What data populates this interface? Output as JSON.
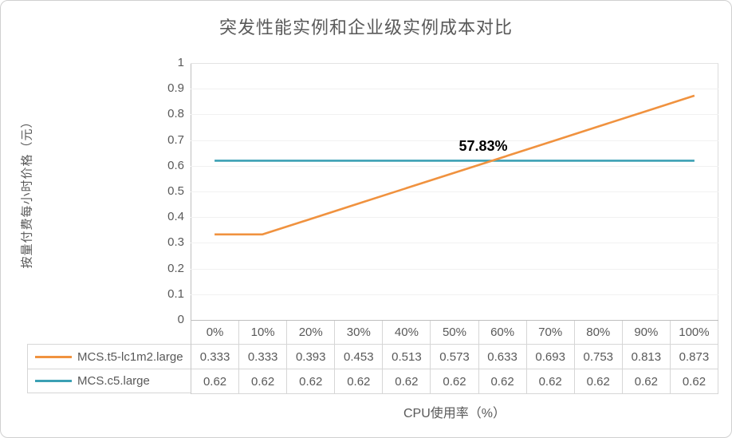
{
  "title": "突发性能实例和企业级实例成本对比",
  "y_axis_title": "按量付费每小时价格（元）",
  "x_axis_title": "CPU使用率（%）",
  "annotation": {
    "text": "57.83%"
  },
  "colors": {
    "series_burst": "#F0923F",
    "series_enterprise": "#3BA0B4",
    "gridline": "#F1F1F1",
    "axis_line": "#BFBFBF",
    "table_border": "#D6D6D6",
    "text": "#595959",
    "annotation_text": "#000000"
  },
  "chart_data": {
    "type": "line",
    "title": "突发性能实例和企业级实例成本对比",
    "xlabel": "CPU使用率（%）",
    "ylabel": "按量付费每小时价格（元）",
    "categories": [
      "0%",
      "10%",
      "20%",
      "30%",
      "40%",
      "50%",
      "60%",
      "70%",
      "80%",
      "90%",
      "100%"
    ],
    "series": [
      {
        "name": "MCS.t5-lc1m2.large",
        "color": "#F0923F",
        "values": [
          0.333,
          0.333,
          0.393,
          0.453,
          0.513,
          0.573,
          0.633,
          0.693,
          0.753,
          0.813,
          0.873
        ]
      },
      {
        "name": "MCS.c5.large",
        "color": "#3BA0B4",
        "values": [
          0.62,
          0.62,
          0.62,
          0.62,
          0.62,
          0.62,
          0.62,
          0.62,
          0.62,
          0.62,
          0.62
        ]
      }
    ],
    "ylim": [
      0,
      1
    ],
    "y_tick_step": 0.1,
    "grid": true,
    "legend_position": "data-table-left",
    "annotations": [
      {
        "text": "57.83%",
        "x_value": 0.5783,
        "y_value": 0.66
      }
    ]
  }
}
